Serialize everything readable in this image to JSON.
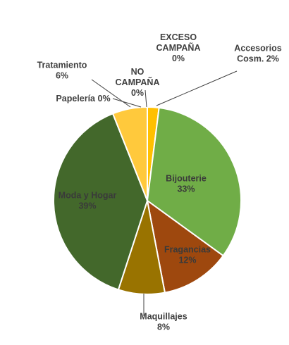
{
  "chart_data": {
    "type": "pie",
    "title": "",
    "start_angle_deg": 0,
    "direction": "clockwise",
    "slices": [
      {
        "name": "Accesorios Cosm.",
        "name_lines": [
          "Accesorios",
          "Cosm."
        ],
        "value": 2,
        "label": "2%",
        "color": "#ffc000"
      },
      {
        "name": "Bijouterie",
        "name_lines": [
          "Bijouterie"
        ],
        "value": 33,
        "label": "33%",
        "color": "#70ad47"
      },
      {
        "name": "Fragancias",
        "name_lines": [
          "Fragancias"
        ],
        "value": 12,
        "label": "12%",
        "color": "#9e480e"
      },
      {
        "name": "Maquillajes",
        "name_lines": [
          "Maquillajes"
        ],
        "value": 8,
        "label": "8%",
        "color": "#997300"
      },
      {
        "name": "Moda y Hogar",
        "name_lines": [
          "Moda y Hogar"
        ],
        "value": 39,
        "label": "39%",
        "color": "#43682b"
      },
      {
        "name": "Tratamiento",
        "name_lines": [
          "Tratamiento"
        ],
        "value": 6,
        "label": "6%",
        "color": "#ffc93c"
      },
      {
        "name": "Papelería",
        "name_lines": [
          "Papelería"
        ],
        "value": 0,
        "label": "0%",
        "color": "#f4b183"
      },
      {
        "name": "NO CAMPAÑA",
        "name_lines": [
          "NO",
          "CAMPAÑA"
        ],
        "value": 0,
        "label": "0%",
        "color": "#a5a5a5"
      },
      {
        "name": "EXCESO CAMPAÑA",
        "name_lines": [
          "EXCESO",
          "CAMPAÑA"
        ],
        "value": 0,
        "label": "0%",
        "color": "#5b9bd5"
      }
    ]
  }
}
